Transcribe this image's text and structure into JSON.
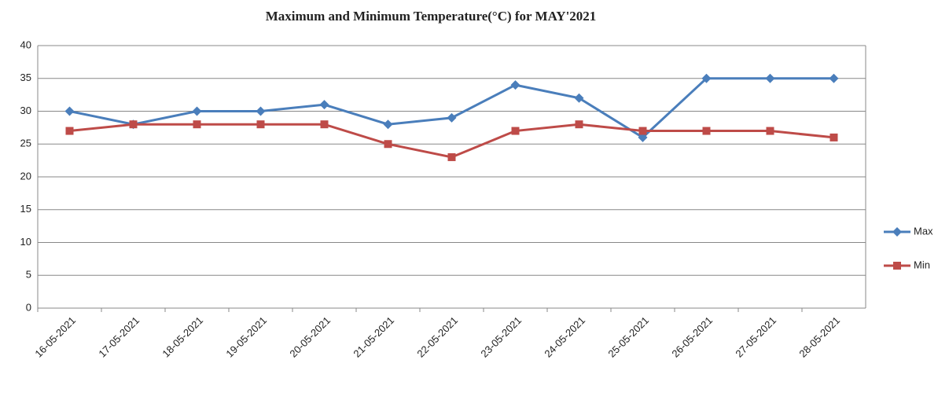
{
  "chart_data": {
    "type": "line",
    "title": "Maximum and Minimum Temperature(°C) for  MAY'2021",
    "categories": [
      "16-05-2021",
      "17-05-2021",
      "18-05-2021",
      "19-05-2021",
      "20-05-2021",
      "21-05-2021",
      "22-05-2021",
      "23-05-2021",
      "24-05-2021",
      "25-05-2021",
      "26-05-2021",
      "27-05-2021",
      "28-05-2021"
    ],
    "series": [
      {
        "name": "Max",
        "color": "#4a7ebb",
        "values": [
          30,
          28,
          30,
          30,
          31,
          28,
          29,
          34,
          32,
          26,
          35,
          35,
          35
        ]
      },
      {
        "name": "Min",
        "color": "#be4b48",
        "values": [
          27,
          28,
          28,
          28,
          28,
          25,
          23,
          27,
          28,
          27,
          27,
          27,
          26
        ]
      }
    ],
    "ylim": [
      0,
      40
    ],
    "yticks": [
      0,
      5,
      10,
      15,
      20,
      25,
      30,
      35,
      40
    ],
    "grid": true,
    "legend": "right"
  }
}
